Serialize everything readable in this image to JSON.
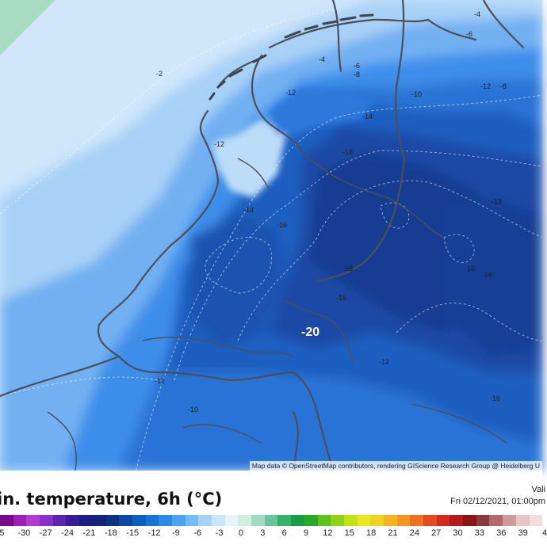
{
  "map": {
    "attribution": "Map data © OpenStreetMap contributors, rendering GIScience Research Group @ Heidelberg U",
    "highlight_value": "-20",
    "contour_labels": [
      {
        "text": "-4"
      },
      {
        "text": "-6"
      },
      {
        "text": "-4"
      },
      {
        "text": "-6"
      },
      {
        "text": "-8"
      },
      {
        "text": "-2"
      },
      {
        "text": "-12"
      },
      {
        "text": "-10"
      },
      {
        "text": "-12"
      },
      {
        "text": "-8"
      },
      {
        "text": "-14"
      },
      {
        "text": "-12"
      },
      {
        "text": "-18"
      },
      {
        "text": "-14"
      },
      {
        "text": "-16"
      },
      {
        "text": "-18"
      },
      {
        "text": "-18"
      },
      {
        "text": "-16"
      },
      {
        "text": "-16"
      },
      {
        "text": "-16"
      },
      {
        "text": "-12"
      },
      {
        "text": "-12"
      },
      {
        "text": "-16"
      },
      {
        "text": "-10"
      }
    ]
  },
  "legend": {
    "title": "in. temperature, 6h (°C)",
    "valid_label": "Vali",
    "valid_time": "Fri 02/12/2021, 01:00pm",
    "tick_labels": [
      "5",
      "-30",
      "-27",
      "-24",
      "-21",
      "-18",
      "-15",
      "-12",
      "-9",
      "-6",
      "-3",
      "0",
      "3",
      "6",
      "9",
      "12",
      "15",
      "18",
      "21",
      "24",
      "27",
      "30",
      "33",
      "36",
      "39",
      "4"
    ],
    "colors": [
      "#7a0a8c",
      "#9c1fb8",
      "#b23bd0",
      "#8a2fc8",
      "#5c22b0",
      "#3a1a98",
      "#1d1d86",
      "#13247a",
      "#0c3580",
      "#0b4aa0",
      "#0d5fc0",
      "#1874d8",
      "#2b8ae6",
      "#4aa2f0",
      "#74bcf6",
      "#a3d3fa",
      "#c9e6fc",
      "#e6f4fd",
      "#cfeee2",
      "#9edbc1",
      "#68c79a",
      "#37b06a",
      "#1b9c45",
      "#2aa82a",
      "#5cc21c",
      "#8fd416",
      "#c3e214",
      "#e8e81a",
      "#f2d21c",
      "#f5b41f",
      "#f39424",
      "#ee7124",
      "#e64a22",
      "#d42a1e",
      "#b41a1a",
      "#8e1414",
      "#8a3a3a",
      "#b46a6a",
      "#d29a9a",
      "#e8c4c4",
      "#f2dcdc"
    ]
  }
}
